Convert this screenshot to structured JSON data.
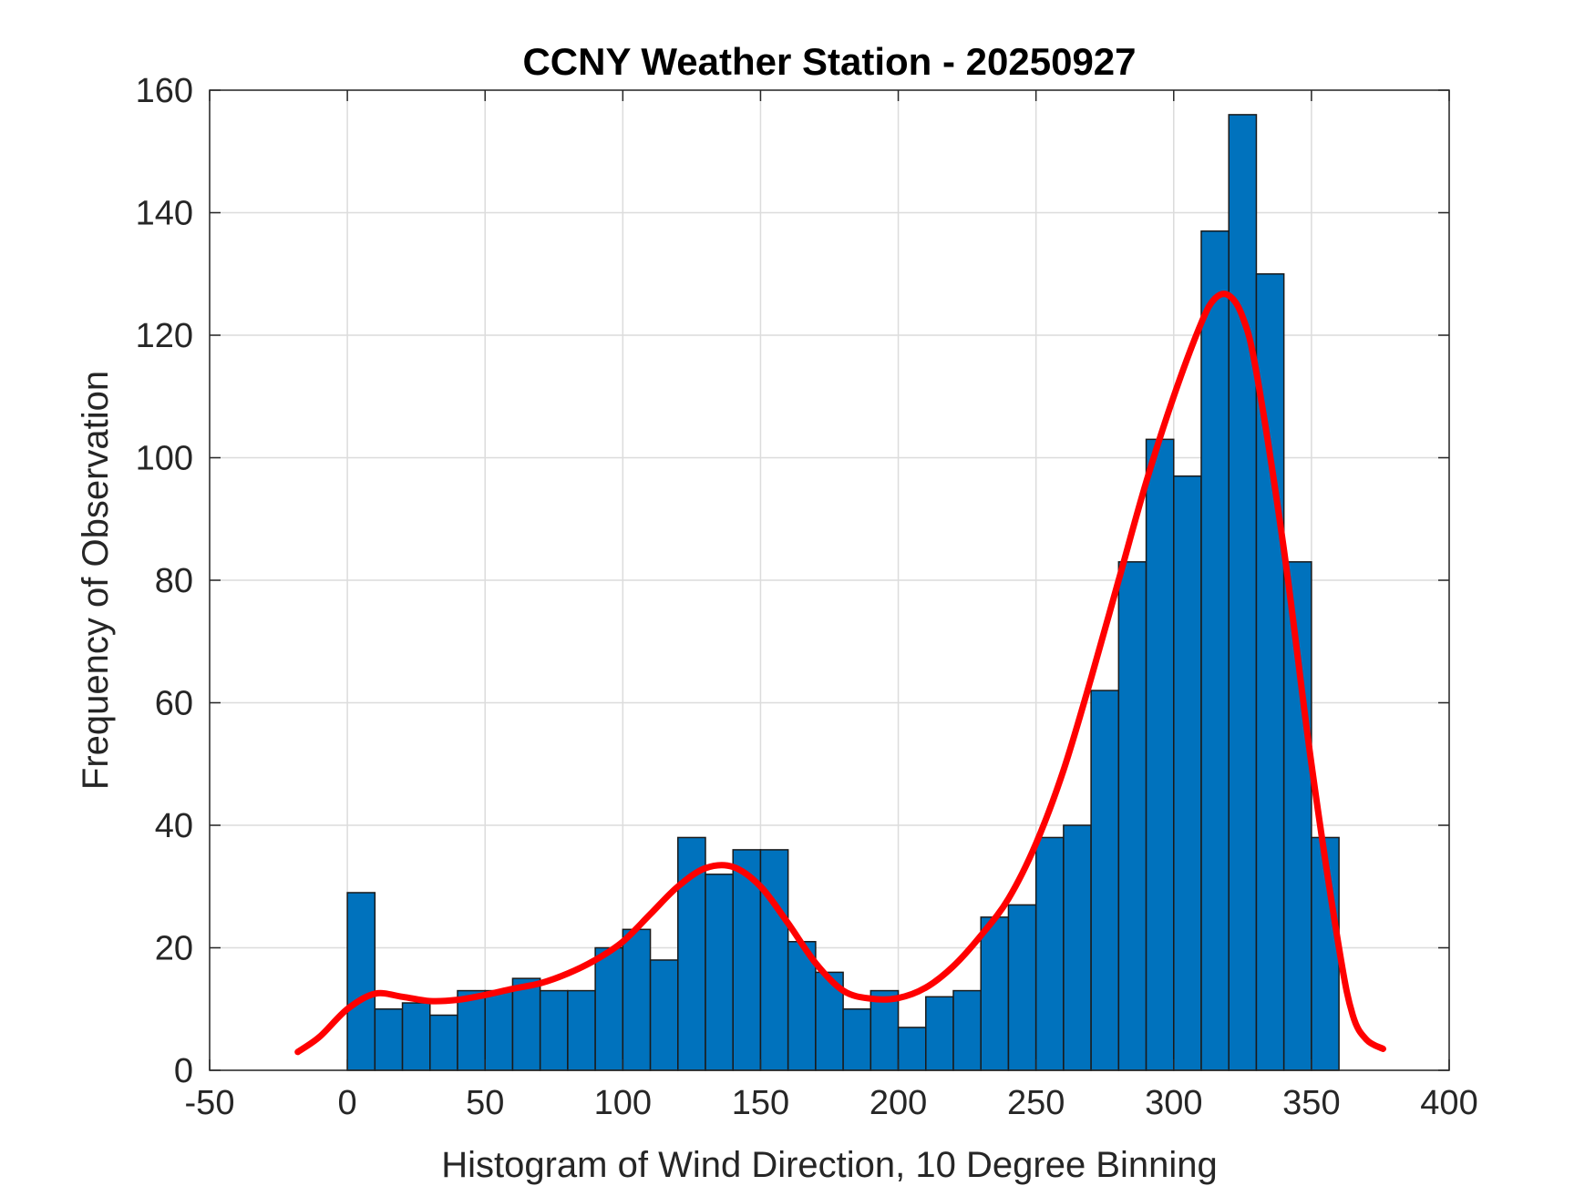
{
  "chart_data": {
    "type": "bar",
    "title": "CCNY Weather Station - 20250927",
    "xlabel": "Histogram of Wind Direction, 10 Degree Binning",
    "ylabel": "Frequency of Observation",
    "xlim": [
      -50,
      400
    ],
    "ylim": [
      0,
      160
    ],
    "xticks": [
      -50,
      0,
      50,
      100,
      150,
      200,
      250,
      300,
      350,
      400
    ],
    "yticks": [
      0,
      20,
      40,
      60,
      80,
      100,
      120,
      140,
      160
    ],
    "grid": true,
    "bin_width": 10,
    "bin_edges_start": [
      0,
      10,
      20,
      30,
      40,
      50,
      60,
      70,
      80,
      90,
      100,
      110,
      120,
      130,
      140,
      150,
      160,
      170,
      180,
      190,
      200,
      210,
      220,
      230,
      240,
      250,
      260,
      270,
      280,
      290,
      300,
      310,
      320,
      330,
      340,
      350
    ],
    "values": [
      29,
      10,
      11,
      9,
      13,
      13,
      15,
      13,
      13,
      20,
      23,
      18,
      38,
      32,
      36,
      36,
      21,
      16,
      10,
      13,
      7,
      12,
      13,
      25,
      27,
      38,
      40,
      62,
      83,
      103,
      97,
      137,
      156,
      130,
      83,
      38
    ],
    "bar_color": "#0072BD",
    "fit_curve": {
      "color": "#FF0000",
      "x": [
        -18,
        -10,
        0,
        10,
        20,
        30,
        40,
        50,
        60,
        70,
        80,
        90,
        100,
        110,
        120,
        130,
        140,
        150,
        160,
        170,
        180,
        190,
        200,
        210,
        220,
        230,
        240,
        250,
        260,
        270,
        280,
        290,
        300,
        310,
        315,
        320,
        325,
        330,
        340,
        350,
        360,
        365,
        370,
        376
      ],
      "y": [
        3,
        5.5,
        10,
        12.5,
        12,
        11.3,
        11.5,
        12.3,
        13.3,
        14.2,
        15.8,
        18,
        21,
        25.5,
        30,
        33,
        33.2,
        30,
        24,
        17.5,
        13,
        11.7,
        11.8,
        13.5,
        17,
        22,
        28,
        37,
        49,
        64,
        80,
        96,
        110,
        122,
        126,
        126.5,
        123,
        114,
        85,
        50,
        20,
        9,
        5,
        3.5
      ]
    }
  }
}
